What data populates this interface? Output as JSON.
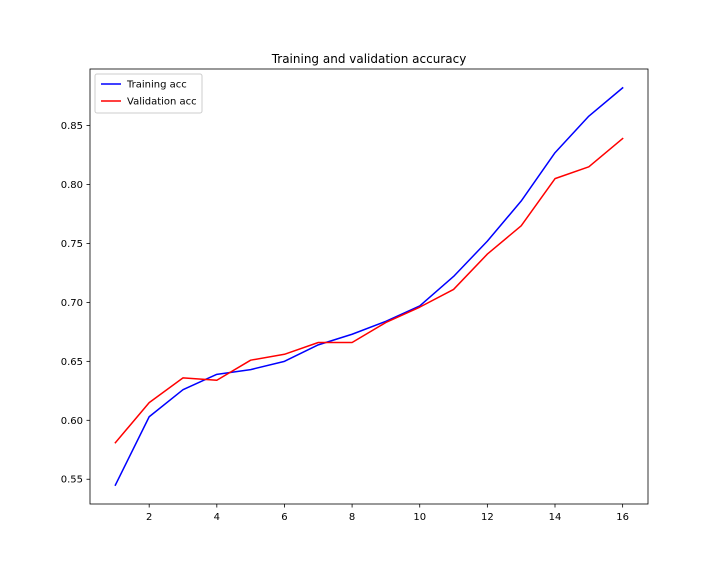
{
  "chart_data": {
    "type": "line",
    "title": "Training and validation accuracy",
    "xlabel": "",
    "ylabel": "",
    "x": [
      1,
      2,
      3,
      4,
      5,
      6,
      7,
      8,
      9,
      10,
      11,
      12,
      13,
      14,
      15,
      16
    ],
    "xlim": [
      0.25,
      16.75
    ],
    "ylim": [
      0.529,
      0.898
    ],
    "xticks": [
      2,
      4,
      6,
      8,
      10,
      12,
      14,
      16
    ],
    "yticks": [
      0.55,
      0.6,
      0.65,
      0.7,
      0.75,
      0.8,
      0.85
    ],
    "xtick_labels": [
      "2",
      "4",
      "6",
      "8",
      "10",
      "12",
      "14",
      "16"
    ],
    "ytick_labels": [
      "0.55",
      "0.60",
      "0.65",
      "0.70",
      "0.75",
      "0.80",
      "0.85"
    ],
    "grid": false,
    "legend_position": "top-left",
    "series": [
      {
        "name": "Training acc",
        "color": "#0000ff",
        "values": [
          0.545,
          0.603,
          0.626,
          0.639,
          0.643,
          0.65,
          0.664,
          0.673,
          0.684,
          0.697,
          0.722,
          0.752,
          0.786,
          0.827,
          0.858,
          0.882
        ]
      },
      {
        "name": "Validation acc",
        "color": "#ff0000",
        "values": [
          0.581,
          0.615,
          0.636,
          0.634,
          0.651,
          0.656,
          0.666,
          0.666,
          0.683,
          0.696,
          0.711,
          0.741,
          0.765,
          0.805,
          0.815,
          0.839
        ]
      }
    ]
  }
}
